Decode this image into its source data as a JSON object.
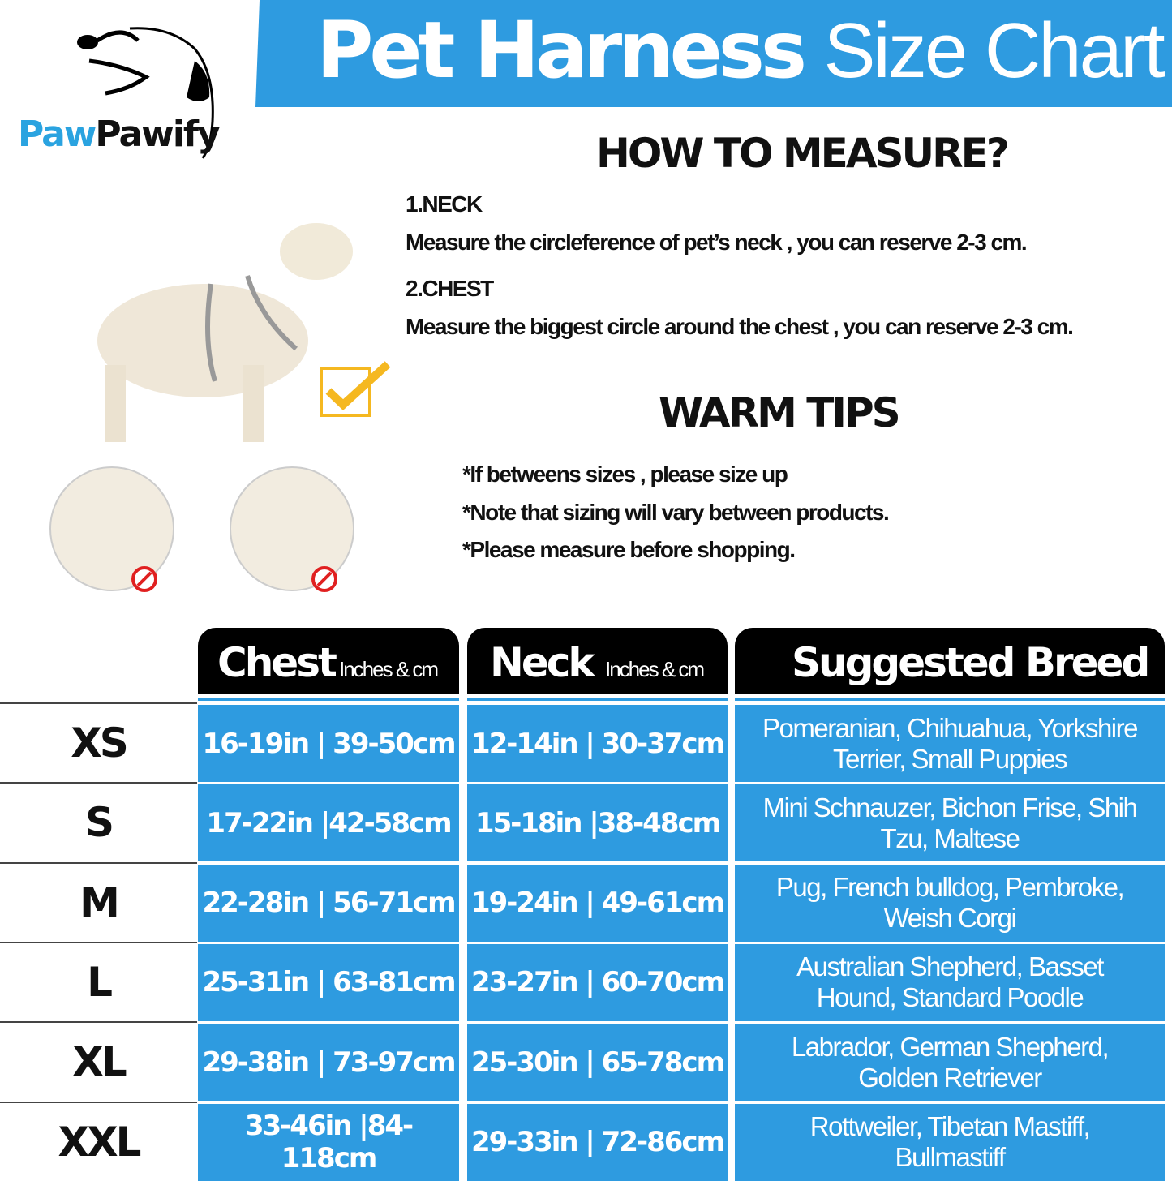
{
  "brand": {
    "logo_text_a": "Paw",
    "logo_text_b": "Pawify"
  },
  "title": {
    "bold": "Pet Harness",
    "light": "Size Chart"
  },
  "how_to_measure": {
    "heading": "HOW TO MEASURE?",
    "neck_label": "1.NECK",
    "neck_text": "Measure the circleference of pet’s neck , you can reserve 2-3 cm.",
    "chest_label": "2.CHEST",
    "chest_text": "Measure the biggest circle around the chest , you can reserve 2-3 cm."
  },
  "warm_tips": {
    "heading": "WARM TIPS",
    "tips": [
      "*If betweens sizes , please size up",
      "*Note that sizing will vary between products.",
      "*Please measure before shopping."
    ]
  },
  "colors": {
    "accent": "#2e9be0",
    "header": "#000000",
    "check": "#f5b820",
    "prohibit": "#e02020"
  },
  "table": {
    "headers": {
      "chest": "Chest",
      "chest_unit": "Inches & cm",
      "neck": "Neck",
      "neck_unit": "Inches & cm",
      "breed": "Suggested Breed"
    },
    "rows": [
      {
        "size": "XS",
        "chest": "16-19in | 39-50cm",
        "neck": "12-14in | 30-37cm",
        "breed": "Pomeranian, Chihuahua, Yorkshire Terrier, Small Puppies"
      },
      {
        "size": "S",
        "chest": "17-22in |42-58cm",
        "neck": "15-18in |38-48cm",
        "breed": "Mini Schnauzer, Bichon Frise, Shih Tzu, Maltese"
      },
      {
        "size": "M",
        "chest": "22-28in | 56-71cm",
        "neck": "19-24in | 49-61cm",
        "breed": "Pug, French bulldog, Pembroke, Weish Corgi"
      },
      {
        "size": "L",
        "chest": "25-31in | 63-81cm",
        "neck": "23-27in | 60-70cm",
        "breed": "Australian Shepherd, Basset Hound, Standard Poodle"
      },
      {
        "size": "XL",
        "chest": "29-38in | 73-97cm",
        "neck": "25-30in | 65-78cm",
        "breed": "Labrador, German Shepherd, Golden Retriever"
      },
      {
        "size": "XXL",
        "chest": "33-46in |84-118cm",
        "neck": "29-33in | 72-86cm",
        "breed": "Rottweiler, Tibetan Mastiff, Bullmastiff"
      }
    ]
  }
}
